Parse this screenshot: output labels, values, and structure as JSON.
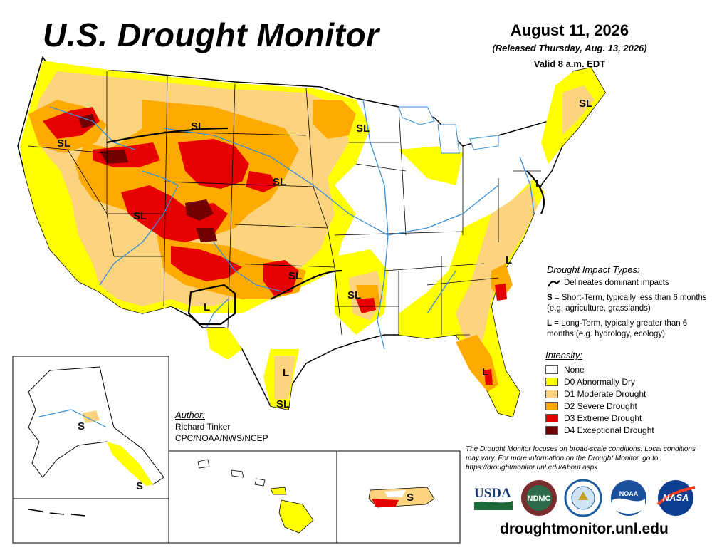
{
  "header": {
    "title": "U.S. Drought Monitor",
    "date": "August 11, 2026",
    "released": "(Released Thursday, Aug. 13, 2026)",
    "valid": "Valid 8 a.m. EDT"
  },
  "colors": {
    "none": "#ffffff",
    "d0": "#ffff00",
    "d1": "#fcd37f",
    "d2": "#ffaa00",
    "d3": "#e60000",
    "d4": "#730000",
    "rivers": "#3a8fd6",
    "borders": "#000000"
  },
  "impact_types": {
    "heading": "Drought Impact Types:",
    "line_note": "Delineates dominant impacts",
    "short_key": "S",
    "short_desc": "= Short-Term, typically less than 6 months (e.g. agriculture, grasslands)",
    "long_key": "L",
    "long_desc": "= Long-Term, typically greater than 6 months (e.g. hydrology, ecology)"
  },
  "intensity": {
    "heading": "Intensity:",
    "items": [
      {
        "label": "None",
        "color": "#ffffff"
      },
      {
        "label": "D0 Abnormally Dry",
        "color": "#ffff00"
      },
      {
        "label": "D1 Moderate Drought",
        "color": "#fcd37f"
      },
      {
        "label": "D2 Severe Drought",
        "color": "#ffaa00"
      },
      {
        "label": "D3 Extreme Drought",
        "color": "#e60000"
      },
      {
        "label": "D4 Exceptional Drought",
        "color": "#730000"
      }
    ]
  },
  "map_labels": {
    "oregon": "SL",
    "montana": "SL",
    "utah": "SL",
    "south_dakota": "SL",
    "wisconsin": "SL",
    "new_england": "SL",
    "mid_atlantic": "L",
    "kansas_oklahoma": "SL",
    "arkansas": "SL",
    "carolinas": "L",
    "texas_west": "L",
    "texas_coast": "L",
    "texas_south": "SL",
    "florida": "L",
    "alaska_interior": "S",
    "alaska_southeast": "S",
    "puerto_rico": "S"
  },
  "author": {
    "heading": "Author:",
    "name": "Richard Tinker",
    "org": "CPC/NOAA/NWS/NCEP"
  },
  "footnote": "The Drought Monitor focuses on broad-scale conditions. Local conditions may vary. For more information on the Drought Monitor, go to https://droughtmonitor.unl.edu/About.aspx",
  "logos": {
    "usda": "USDA",
    "ndmc": "NDMC",
    "noaa": "NOAA",
    "nasa": "NASA"
  },
  "site": "droughtmonitor.unl.edu"
}
